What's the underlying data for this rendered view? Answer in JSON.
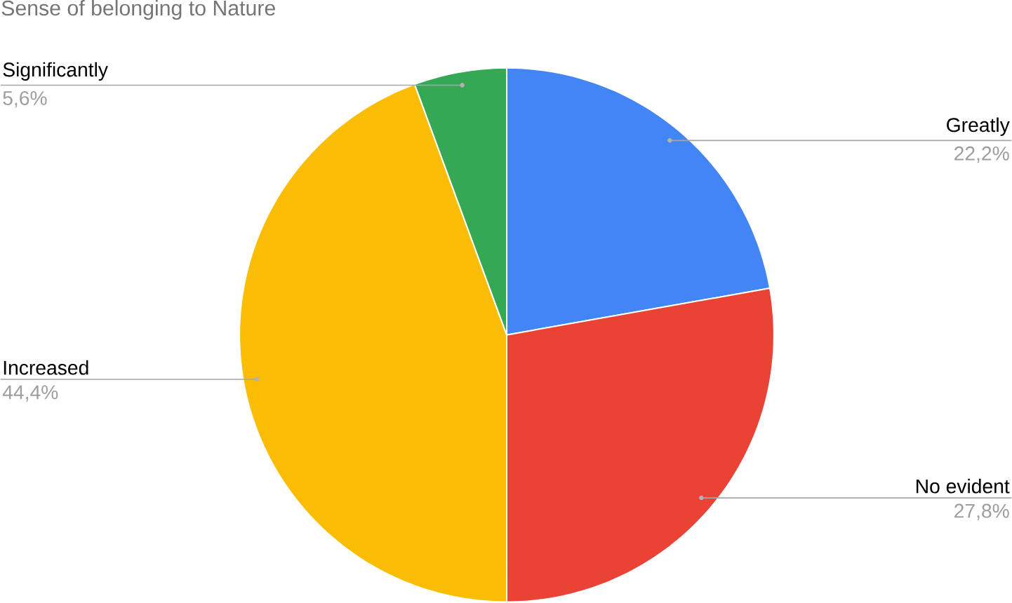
{
  "chart_data": {
    "type": "pie",
    "title": "Sense of belonging to Nature",
    "categories": [
      "Greatly",
      "No evident",
      "Increased",
      "Significantly"
    ],
    "values": [
      22.2,
      27.8,
      44.4,
      5.6
    ],
    "value_labels": [
      "22,2%",
      "27,8%",
      "44,4%",
      "5,6%"
    ],
    "colors": [
      "#4285f4",
      "#ea4335",
      "#fbbc04",
      "#34a853"
    ]
  }
}
